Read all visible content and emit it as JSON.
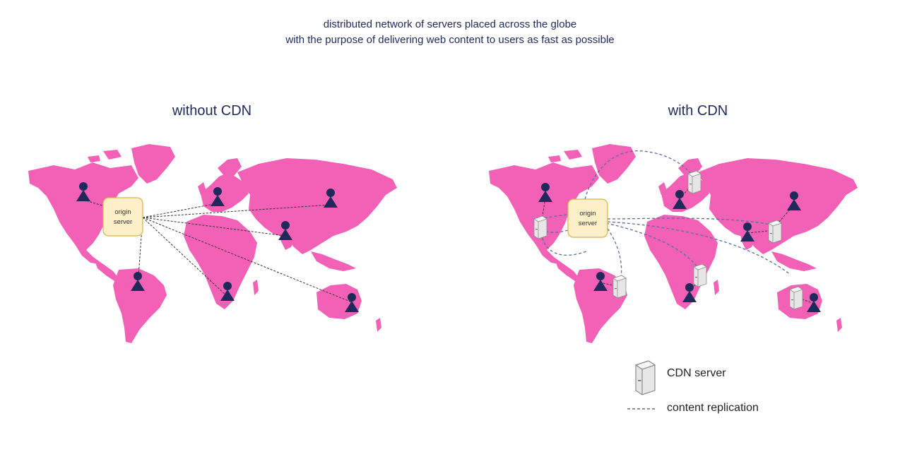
{
  "header": {
    "line1": "distributed network of servers placed across the globe",
    "line2": "with the purpose of delivering web content to users as fast as possible"
  },
  "panels": {
    "left_title": "without CDN",
    "right_title": "with CDN",
    "origin_label_line1": "origin",
    "origin_label_line2": "server"
  },
  "legend": {
    "cdn_server": "CDN server",
    "content_replication": "content replication"
  },
  "colors": {
    "land": "#f261b5",
    "user": "#1f2a5a",
    "origin_fill": "#fdf0c8",
    "origin_stroke": "#d9b24c",
    "replication": "#5b6c9e"
  }
}
